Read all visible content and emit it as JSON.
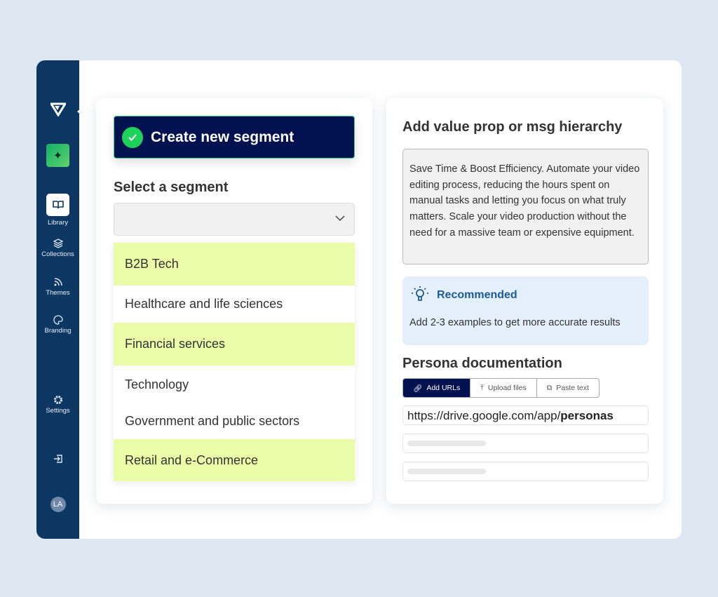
{
  "sidebar": {
    "items": [
      {
        "label": "Library",
        "icon": "book-icon",
        "active": true
      },
      {
        "label": "Collections",
        "icon": "layers-icon"
      },
      {
        "label": "Themes",
        "icon": "rss-icon"
      },
      {
        "label": "Branding",
        "icon": "palette-icon"
      },
      {
        "label": "Settings",
        "icon": "gear-icon"
      }
    ],
    "avatar": "LA"
  },
  "segment": {
    "create_label": "Create new segment",
    "select_label": "Select a segment",
    "options": [
      "B2B Tech",
      "Healthcare and life sciences",
      "Financial services",
      "Technology",
      "Government and public sectors",
      "Retail and e-Commerce"
    ]
  },
  "value_prop": {
    "title": "Add value prop or msg hierarchy",
    "text": "Save Time & Boost Efficiency. Automate your video editing process, reducing the hours spent on manual tasks and letting you focus on what truly matters. Scale your video production without the need for a massive team or expensive equipment."
  },
  "recommended": {
    "title": "Recommended",
    "text": "Add 2-3 examples to get more accurate results"
  },
  "persona": {
    "title": "Persona documentation",
    "tabs": [
      "Add URLs",
      "Upload files",
      "Paste text"
    ],
    "url_prefix": "https://drive.google.com/app/",
    "url_bold": "personas"
  },
  "colors": {
    "sidebar": "#0b3762",
    "accent": "#021250",
    "highlight": "#ebfca8",
    "success": "#1fd05a"
  }
}
